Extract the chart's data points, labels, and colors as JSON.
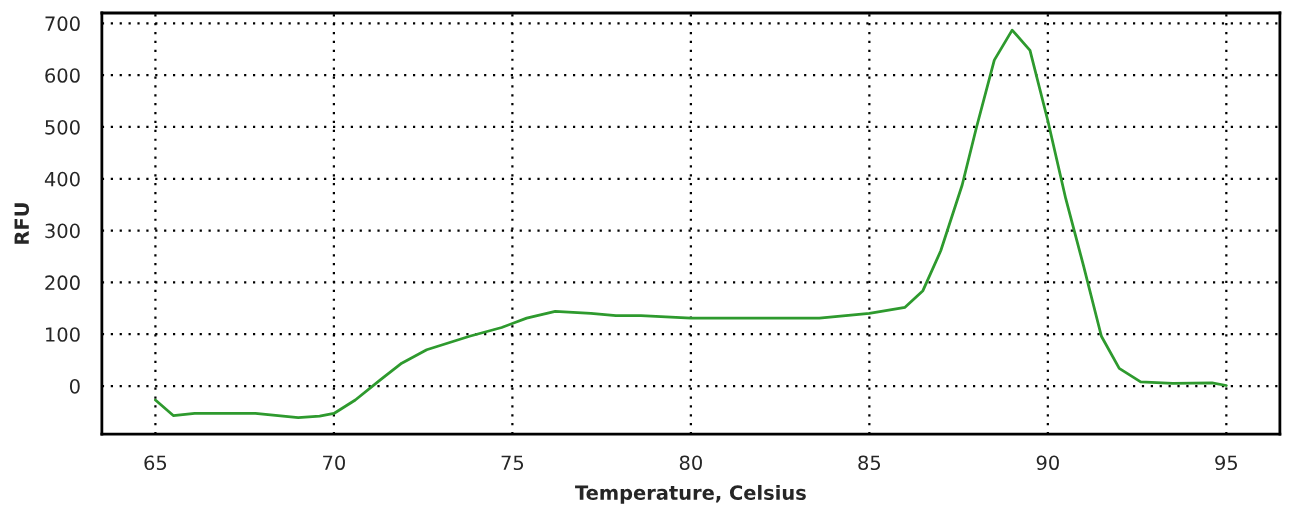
{
  "chart_data": {
    "type": "line",
    "xlabel": "Temperature, Celsius",
    "ylabel": "RFU",
    "x": [
      65,
      65.5,
      66.1,
      67.8,
      69,
      69.6,
      70,
      70.6,
      71.3,
      71.9,
      72.6,
      73.8,
      74.7,
      75.4,
      76.2,
      77.2,
      77.9,
      78.6,
      80,
      82.3,
      83.6,
      85,
      86,
      86.5,
      87,
      87.6,
      88,
      88.5,
      89,
      89.5,
      90,
      90.5,
      91,
      91.5,
      92,
      92.6,
      93.5,
      94.6,
      95
    ],
    "series": [
      {
        "color": "#2e9a2e",
        "values": [
          -27,
          -57,
          -53,
          -53,
          -61,
          -58,
          -53,
          -27,
          12,
          44,
          70,
          96,
          113,
          131,
          144,
          140,
          136,
          136,
          131,
          131,
          131,
          140,
          152,
          184,
          261,
          388,
          499,
          629,
          687,
          648,
          512,
          362,
          232,
          96,
          34,
          8,
          5,
          6,
          1
        ]
      }
    ],
    "xlim": [
      63.5,
      96.5
    ],
    "ylim": [
      -93,
      720
    ],
    "xticks": [
      65,
      70,
      75,
      80,
      85,
      90,
      95
    ],
    "yticks": [
      0,
      100,
      200,
      300,
      400,
      500,
      600,
      700
    ],
    "grid": true,
    "legend": false,
    "marker": "none",
    "line_style": "solid"
  }
}
